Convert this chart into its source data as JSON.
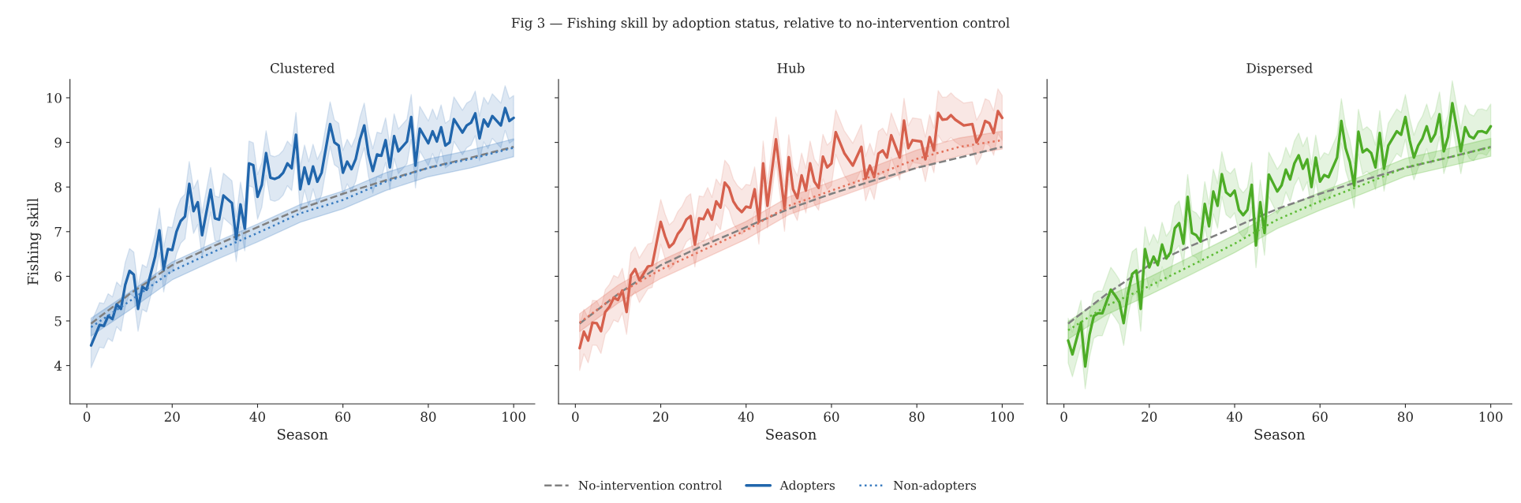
{
  "chart_data": [
    {
      "type": "line",
      "title": "Clustered",
      "xlabel": "Season",
      "ylabel": "Fishing skill",
      "annotations": [
        "Fig 3 — Fishing skill by adoption status, relative to no-intervention control"
      ],
      "xlim": [
        -3.95,
        104.95
      ],
      "ylim": [
        3.14,
        10.41
      ],
      "xticks": [
        0,
        20,
        40,
        60,
        80,
        100
      ],
      "yticks": [
        4,
        5,
        6,
        7,
        8,
        9,
        10
      ],
      "legend": "bottom",
      "series": [
        {
          "name": "No-intervention control",
          "color": "#808080",
          "line_style": "dashed",
          "x": [
            1,
            10,
            20,
            30,
            40,
            50,
            60,
            70,
            80,
            90,
            100
          ],
          "values": [
            4.94,
            5.6,
            6.25,
            6.69,
            7.1,
            7.51,
            7.85,
            8.15,
            8.43,
            8.66,
            8.9
          ]
        },
        {
          "name": "Adopters",
          "color": "#2166ac",
          "line_style": "solid",
          "x": [
            1,
            3,
            4,
            5,
            6,
            7,
            8,
            9,
            10,
            11,
            12,
            13,
            14,
            16,
            17,
            18,
            19,
            20,
            21,
            22,
            23,
            24,
            25,
            26,
            27,
            29,
            30,
            31,
            32,
            34,
            35,
            36,
            37,
            38,
            39,
            40,
            41,
            42,
            43,
            44,
            45,
            46,
            47,
            48,
            49,
            50,
            51,
            52,
            53,
            54,
            55,
            57,
            58,
            59,
            60,
            61,
            62,
            63,
            64,
            65,
            66,
            67,
            68,
            69,
            70,
            71,
            72,
            73,
            75,
            76,
            77,
            78,
            80,
            81,
            82,
            83,
            84,
            85,
            86,
            88,
            89,
            90,
            91,
            92,
            93,
            94,
            95,
            97,
            98,
            99,
            100
          ],
          "values": [
            4.45,
            4.91,
            4.89,
            5.11,
            5.04,
            5.37,
            5.27,
            5.81,
            6.12,
            6.04,
            5.27,
            5.76,
            5.7,
            6.44,
            7.03,
            6.15,
            6.61,
            6.59,
            7.0,
            7.24,
            7.34,
            8.07,
            7.46,
            7.66,
            6.92,
            7.94,
            7.3,
            7.27,
            7.81,
            7.64,
            6.83,
            7.61,
            7.07,
            8.53,
            8.49,
            7.78,
            8.05,
            8.76,
            8.21,
            8.18,
            8.22,
            8.32,
            8.53,
            8.42,
            9.17,
            7.95,
            8.44,
            8.07,
            8.46,
            8.12,
            8.32,
            9.41,
            9.0,
            8.93,
            8.32,
            8.57,
            8.4,
            8.63,
            9.07,
            9.38,
            8.73,
            8.36,
            8.73,
            8.7,
            9.05,
            8.44,
            9.14,
            8.8,
            9.02,
            9.57,
            8.48,
            9.31,
            8.98,
            9.25,
            9.02,
            9.34,
            8.93,
            9.0,
            9.52,
            9.22,
            9.38,
            9.44,
            9.65,
            9.09,
            9.51,
            9.36,
            9.59,
            9.38,
            9.77,
            9.48,
            9.55
          ],
          "lower": [
            3.95,
            4.41,
            4.39,
            4.61,
            4.54,
            4.87,
            4.77,
            5.31,
            5.62,
            5.54,
            4.77,
            5.26,
            5.2,
            5.94,
            6.53,
            5.65,
            6.11,
            6.09,
            6.5,
            6.74,
            6.84,
            7.57,
            6.96,
            7.16,
            6.42,
            7.44,
            6.8,
            6.77,
            7.31,
            7.14,
            6.33,
            7.11,
            6.57,
            8.03,
            7.99,
            7.28,
            7.55,
            8.26,
            7.71,
            7.68,
            7.72,
            7.82,
            8.03,
            7.92,
            8.67,
            7.45,
            7.94,
            7.57,
            7.96,
            7.62,
            7.82,
            8.91,
            8.5,
            8.43,
            7.82,
            8.07,
            7.9,
            8.13,
            8.57,
            8.88,
            8.23,
            7.86,
            8.23,
            8.2,
            8.55,
            7.94,
            8.64,
            8.3,
            8.52,
            9.07,
            7.98,
            8.81,
            8.48,
            8.75,
            8.52,
            8.84,
            8.43,
            8.5,
            9.02,
            8.72,
            8.88,
            8.94,
            9.15,
            8.59,
            9.01,
            8.86,
            9.09,
            8.88,
            9.27,
            8.98,
            9.05
          ],
          "upper": [
            4.95,
            5.41,
            5.39,
            5.61,
            5.54,
            5.87,
            5.77,
            6.31,
            6.62,
            6.54,
            5.77,
            6.26,
            6.2,
            6.94,
            7.53,
            6.65,
            7.11,
            7.09,
            7.5,
            7.74,
            7.84,
            8.57,
            7.96,
            8.16,
            7.42,
            8.44,
            7.8,
            7.77,
            8.31,
            8.14,
            7.33,
            8.11,
            7.57,
            9.03,
            8.99,
            8.28,
            8.55,
            9.26,
            8.71,
            8.68,
            8.72,
            8.82,
            9.03,
            8.92,
            9.67,
            8.45,
            8.94,
            8.57,
            8.96,
            8.62,
            8.82,
            9.91,
            9.5,
            9.43,
            8.82,
            9.07,
            8.9,
            9.13,
            9.57,
            9.88,
            9.23,
            8.86,
            9.23,
            9.2,
            9.55,
            8.94,
            9.64,
            9.3,
            9.52,
            10.07,
            8.98,
            9.81,
            9.48,
            9.75,
            9.52,
            9.84,
            9.43,
            9.5,
            10.02,
            9.72,
            9.88,
            9.94,
            10.15,
            9.59,
            10.01,
            9.86,
            10.09,
            9.88,
            10.27,
            9.98,
            10.05
          ]
        },
        {
          "name": "Non-adopters",
          "color": "#3a7cc0",
          "line_style": "dotted",
          "x": [
            1,
            10,
            20,
            30,
            40,
            50,
            60,
            70,
            80,
            90,
            100
          ],
          "values": [
            4.86,
            5.44,
            6.12,
            6.56,
            6.97,
            7.41,
            7.71,
            8.12,
            8.43,
            8.63,
            8.88
          ],
          "lower": [
            4.66,
            5.24,
            5.92,
            6.36,
            6.77,
            7.21,
            7.51,
            7.92,
            8.23,
            8.43,
            8.68
          ],
          "upper": [
            5.06,
            5.64,
            6.32,
            6.76,
            7.17,
            7.61,
            7.91,
            8.32,
            8.63,
            8.83,
            9.08
          ]
        }
      ]
    },
    {
      "type": "line",
      "title": "Hub",
      "xlabel": "Season",
      "xlim": [
        -3.95,
        104.95
      ],
      "ylim": [
        3.14,
        10.41
      ],
      "xticks": [
        0,
        20,
        40,
        60,
        80,
        100
      ],
      "yticks": [
        4,
        5,
        6,
        7,
        8,
        9,
        10
      ],
      "tick_labels": "x",
      "series": [
        {
          "color": "#808080",
          "line_style": "dashed",
          "x": [
            1,
            10,
            20,
            30,
            40,
            50,
            60,
            70,
            80,
            90,
            100
          ],
          "values": [
            4.94,
            5.6,
            6.25,
            6.69,
            7.1,
            7.51,
            7.85,
            8.15,
            8.43,
            8.66,
            8.9
          ]
        },
        {
          "color": "#d6604d",
          "line_style": "solid",
          "x": [
            1,
            2,
            3,
            4,
            5,
            6,
            7,
            8,
            9,
            10,
            11,
            12,
            13,
            14,
            15,
            17,
            18,
            20,
            21,
            22,
            23,
            24,
            25,
            26,
            27,
            28,
            29,
            30,
            31,
            32,
            33,
            34,
            35,
            36,
            37,
            38,
            39,
            40,
            41,
            42,
            43,
            44,
            45,
            47,
            49,
            50,
            51,
            52,
            53,
            54,
            55,
            56,
            57,
            58,
            59,
            60,
            61,
            63,
            65,
            67,
            68,
            69,
            70,
            71,
            72,
            73,
            74,
            76,
            77,
            78,
            79,
            81,
            82,
            83,
            84,
            85,
            86,
            87,
            88,
            89,
            91,
            93,
            94,
            95,
            96,
            97,
            98,
            99,
            100
          ],
          "values": [
            4.39,
            4.76,
            4.56,
            4.96,
            4.95,
            4.77,
            5.2,
            5.32,
            5.52,
            5.47,
            5.68,
            5.2,
            6.02,
            6.16,
            5.91,
            6.22,
            6.25,
            7.22,
            6.9,
            6.65,
            6.74,
            6.95,
            7.07,
            7.27,
            7.35,
            6.71,
            7.3,
            7.28,
            7.49,
            7.27,
            7.68,
            7.54,
            8.1,
            7.98,
            7.68,
            7.53,
            7.44,
            7.56,
            7.54,
            7.95,
            7.22,
            8.53,
            7.58,
            9.07,
            7.51,
            8.67,
            7.95,
            7.75,
            8.26,
            7.92,
            8.53,
            8.12,
            7.98,
            8.68,
            8.44,
            8.53,
            9.23,
            8.76,
            8.48,
            8.9,
            8.19,
            8.48,
            8.22,
            8.75,
            8.82,
            8.66,
            9.16,
            8.66,
            9.49,
            8.87,
            9.05,
            9.02,
            8.62,
            9.12,
            8.82,
            9.66,
            9.51,
            9.52,
            9.61,
            9.51,
            9.38,
            9.41,
            9.0,
            9.17,
            9.48,
            9.43,
            9.21,
            9.7,
            9.55
          ],
          "lower": [
            3.89,
            4.26,
            4.06,
            4.46,
            4.45,
            4.27,
            4.7,
            4.82,
            5.02,
            4.97,
            5.18,
            4.7,
            5.52,
            5.66,
            5.41,
            5.72,
            5.75,
            6.72,
            6.4,
            6.15,
            6.24,
            6.45,
            6.57,
            6.77,
            6.85,
            6.21,
            6.8,
            6.78,
            6.99,
            6.77,
            7.18,
            7.04,
            7.6,
            7.48,
            7.18,
            7.03,
            6.94,
            7.06,
            7.04,
            7.45,
            6.72,
            8.03,
            7.08,
            8.57,
            7.01,
            8.17,
            7.45,
            7.25,
            7.76,
            7.42,
            8.03,
            7.62,
            7.48,
            8.18,
            7.94,
            8.03,
            8.73,
            8.26,
            7.98,
            8.4,
            7.69,
            7.98,
            7.72,
            8.25,
            8.32,
            8.16,
            8.66,
            8.16,
            8.99,
            8.37,
            8.55,
            8.52,
            8.12,
            8.62,
            8.32,
            9.16,
            9.01,
            9.02,
            9.11,
            9.01,
            8.88,
            8.91,
            8.5,
            8.67,
            8.98,
            8.93,
            8.71,
            9.2,
            9.05
          ],
          "upper": [
            4.89,
            5.26,
            5.06,
            5.46,
            5.45,
            5.27,
            5.7,
            5.82,
            6.02,
            5.97,
            6.18,
            5.7,
            6.52,
            6.66,
            6.41,
            6.72,
            6.75,
            7.72,
            7.4,
            7.15,
            7.24,
            7.45,
            7.57,
            7.77,
            7.85,
            7.21,
            7.8,
            7.78,
            7.99,
            7.77,
            8.18,
            8.04,
            8.6,
            8.48,
            8.18,
            8.03,
            7.94,
            8.06,
            8.04,
            8.45,
            7.72,
            9.03,
            8.08,
            9.57,
            8.01,
            9.17,
            8.45,
            8.25,
            8.76,
            8.42,
            9.03,
            8.62,
            8.48,
            9.18,
            8.94,
            9.03,
            9.73,
            9.26,
            8.98,
            9.4,
            8.69,
            8.98,
            8.72,
            9.25,
            9.32,
            9.16,
            9.66,
            9.16,
            9.99,
            9.37,
            9.55,
            9.52,
            9.12,
            9.62,
            9.32,
            10.16,
            10.01,
            10.02,
            10.11,
            10.01,
            9.88,
            9.91,
            9.5,
            9.67,
            9.98,
            9.93,
            9.71,
            10.2,
            10.05
          ]
        },
        {
          "color": "#e3705a",
          "line_style": "dotted",
          "x": [
            1,
            10,
            20,
            30,
            40,
            50,
            60,
            70,
            80,
            90,
            100
          ],
          "values": [
            4.96,
            5.6,
            6.15,
            6.59,
            7.03,
            7.58,
            7.92,
            8.26,
            8.63,
            8.9,
            9.05
          ],
          "lower": [
            4.76,
            5.4,
            5.95,
            6.39,
            6.83,
            7.38,
            7.72,
            8.06,
            8.43,
            8.7,
            8.85
          ],
          "upper": [
            5.16,
            5.8,
            6.35,
            6.79,
            7.23,
            7.78,
            8.12,
            8.46,
            8.83,
            9.1,
            9.25
          ]
        }
      ]
    },
    {
      "type": "line",
      "title": "Dispersed",
      "xlabel": "Season",
      "xlim": [
        -3.95,
        104.95
      ],
      "ylim": [
        3.14,
        10.41
      ],
      "xticks": [
        0,
        20,
        40,
        60,
        80,
        100
      ],
      "yticks": [
        4,
        5,
        6,
        7,
        8,
        9,
        10
      ],
      "tick_labels": "x",
      "series": [
        {
          "color": "#808080",
          "line_style": "dashed",
          "x": [
            1,
            10,
            20,
            30,
            40,
            50,
            60,
            70,
            80,
            90,
            100
          ],
          "values": [
            4.94,
            5.6,
            6.25,
            6.69,
            7.1,
            7.51,
            7.85,
            8.15,
            8.43,
            8.66,
            8.9
          ]
        },
        {
          "color": "#4dac26",
          "line_style": "solid",
          "x": [
            1,
            2,
            4,
            5,
            6,
            7,
            8,
            9,
            11,
            12,
            13,
            14,
            15,
            16,
            17,
            18,
            19,
            20,
            21,
            22,
            23,
            24,
            25,
            26,
            27,
            28,
            29,
            30,
            31,
            32,
            33,
            34,
            35,
            36,
            37,
            38,
            39,
            40,
            41,
            42,
            43,
            44,
            45,
            46,
            47,
            48,
            49,
            50,
            51,
            52,
            53,
            54,
            55,
            56,
            57,
            58,
            59,
            60,
            61,
            62,
            64,
            65,
            66,
            67,
            68,
            69,
            70,
            71,
            72,
            73,
            74,
            75,
            76,
            77,
            78,
            79,
            80,
            81,
            82,
            83,
            84,
            85,
            86,
            87,
            88,
            89,
            90,
            91,
            92,
            93,
            94,
            95,
            96,
            97,
            98,
            99,
            100
          ],
          "values": [
            4.56,
            4.25,
            4.96,
            3.98,
            4.69,
            5.11,
            5.17,
            5.17,
            5.7,
            5.57,
            5.42,
            4.95,
            5.61,
            6.05,
            6.13,
            5.27,
            6.61,
            6.2,
            6.44,
            6.25,
            6.71,
            6.4,
            6.54,
            7.08,
            7.19,
            6.73,
            7.78,
            6.97,
            6.92,
            6.78,
            7.62,
            7.12,
            7.9,
            7.58,
            8.29,
            7.88,
            7.8,
            7.92,
            7.49,
            7.37,
            7.49,
            8.05,
            6.69,
            7.66,
            6.97,
            8.28,
            8.09,
            7.9,
            8.04,
            8.39,
            8.17,
            8.53,
            8.71,
            8.41,
            8.62,
            8.0,
            8.66,
            8.12,
            8.27,
            8.22,
            8.66,
            9.48,
            8.87,
            8.56,
            8.03,
            9.24,
            8.78,
            8.85,
            8.76,
            8.44,
            9.21,
            8.41,
            8.93,
            9.09,
            9.25,
            9.17,
            9.57,
            9.05,
            8.66,
            8.93,
            9.09,
            9.36,
            9.02,
            9.19,
            9.63,
            8.8,
            9.12,
            9.88,
            9.34,
            8.8,
            9.34,
            9.14,
            9.09,
            9.24,
            9.25,
            9.21,
            9.36
          ],
          "lower": [
            4.06,
            3.75,
            4.46,
            3.48,
            4.19,
            4.61,
            4.67,
            4.67,
            5.2,
            5.07,
            4.92,
            4.45,
            5.11,
            5.55,
            5.63,
            4.77,
            6.11,
            5.7,
            5.94,
            5.75,
            6.21,
            5.9,
            6.04,
            6.58,
            6.69,
            6.23,
            7.28,
            6.47,
            6.42,
            6.28,
            7.12,
            6.62,
            7.4,
            7.08,
            7.79,
            7.38,
            7.3,
            7.42,
            6.99,
            6.87,
            6.99,
            7.55,
            6.19,
            7.16,
            6.47,
            7.78,
            7.59,
            7.4,
            7.54,
            7.89,
            7.67,
            8.03,
            8.21,
            7.91,
            8.12,
            7.5,
            8.16,
            7.62,
            7.77,
            7.72,
            8.16,
            8.98,
            8.37,
            8.06,
            7.53,
            8.74,
            8.28,
            8.35,
            8.26,
            7.94,
            8.71,
            7.91,
            8.43,
            8.59,
            8.75,
            8.67,
            9.07,
            8.55,
            8.16,
            8.43,
            8.59,
            8.86,
            8.52,
            8.69,
            9.13,
            8.3,
            8.62,
            9.38,
            8.84,
            8.3,
            8.84,
            8.64,
            8.59,
            8.74,
            8.75,
            8.71,
            8.86
          ],
          "upper": [
            5.06,
            4.75,
            5.46,
            4.48,
            5.19,
            5.61,
            5.67,
            5.67,
            6.2,
            6.07,
            5.92,
            5.45,
            6.11,
            6.55,
            6.63,
            5.77,
            7.11,
            6.7,
            6.94,
            6.75,
            7.21,
            6.9,
            7.04,
            7.58,
            7.69,
            7.23,
            8.28,
            7.47,
            7.42,
            7.28,
            8.12,
            7.62,
            8.4,
            8.08,
            8.79,
            8.38,
            8.3,
            8.42,
            7.99,
            7.87,
            7.99,
            8.55,
            7.19,
            8.16,
            7.47,
            8.78,
            8.59,
            8.4,
            8.54,
            8.89,
            8.67,
            9.03,
            9.21,
            8.91,
            9.12,
            8.5,
            9.16,
            8.62,
            8.77,
            8.72,
            9.16,
            9.98,
            9.37,
            9.06,
            8.53,
            9.74,
            9.28,
            9.35,
            9.26,
            8.94,
            9.71,
            8.91,
            9.43,
            9.59,
            9.75,
            9.67,
            10.07,
            9.55,
            9.16,
            9.43,
            9.59,
            9.86,
            9.52,
            9.69,
            10.13,
            9.3,
            9.62,
            10.38,
            9.84,
            9.3,
            9.84,
            9.64,
            9.59,
            9.74,
            9.75,
            9.71,
            9.86
          ]
        },
        {
          "color": "#5dbb35",
          "line_style": "dotted",
          "x": [
            1,
            10,
            20,
            30,
            40,
            50,
            60,
            70,
            80,
            90,
            100
          ],
          "values": [
            4.79,
            5.34,
            5.78,
            6.25,
            6.73,
            7.27,
            7.68,
            8.05,
            8.44,
            8.66,
            8.89
          ],
          "lower": [
            4.59,
            5.14,
            5.58,
            6.05,
            6.53,
            7.07,
            7.48,
            7.85,
            8.24,
            8.46,
            8.69
          ],
          "upper": [
            4.99,
            5.54,
            5.98,
            6.45,
            6.93,
            7.47,
            7.88,
            8.25,
            8.64,
            8.86,
            9.09
          ]
        }
      ]
    }
  ]
}
